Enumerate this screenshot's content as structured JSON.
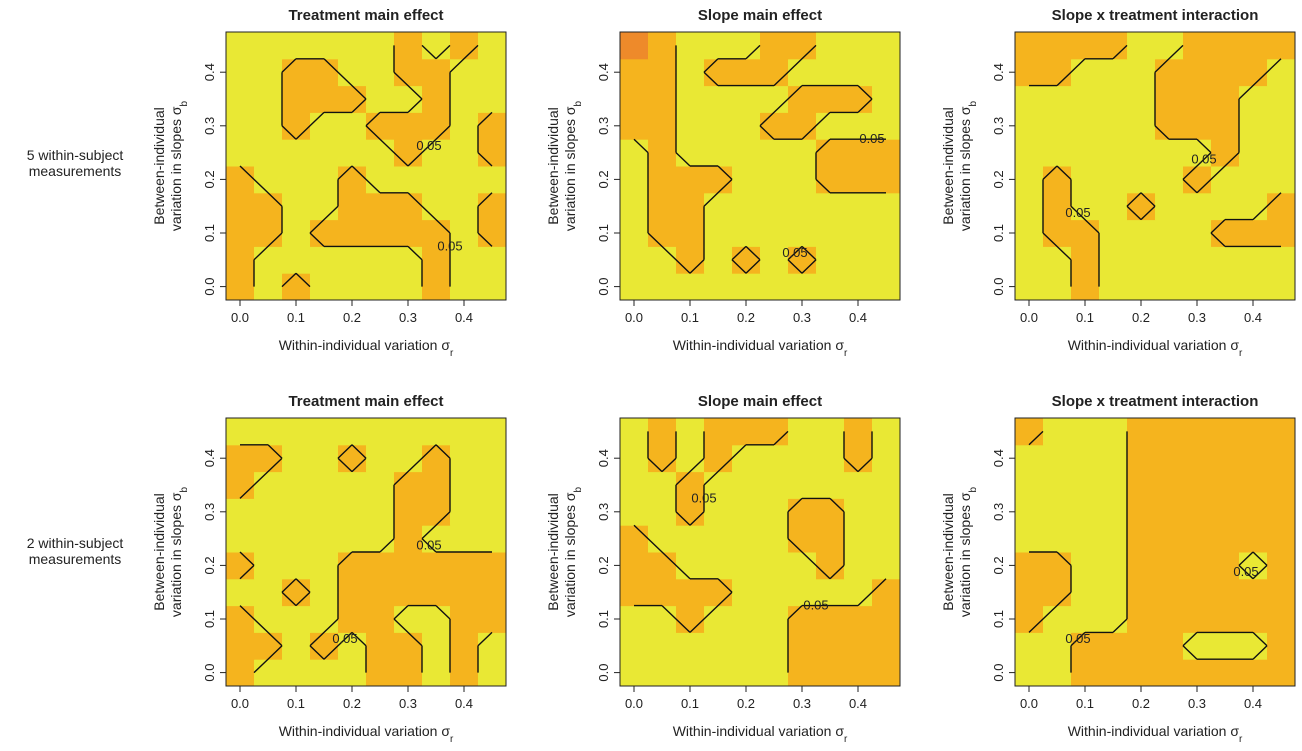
{
  "row_labels": [
    [
      "5 within-subject",
      "measurements"
    ],
    [
      "2 within-subject",
      "measurements"
    ]
  ],
  "chart_data": [
    {
      "type": "heatmap",
      "title": "Treatment main effect",
      "xlabel": "Within-individual variation σ",
      "xlabel_sub": "r",
      "ylabel": [
        "Between-individual",
        "variation in slopes σ"
      ],
      "ylabel_sub": "b",
      "x": [
        0,
        0.05,
        0.1,
        0.15,
        0.2,
        0.25,
        0.3,
        0.35,
        0.4,
        0.45
      ],
      "y": [
        0,
        0.05,
        0.1,
        0.15,
        0.2,
        0.25,
        0.3,
        0.35,
        0.4,
        0.45
      ],
      "xlim": [
        -0.025,
        0.475
      ],
      "ylim": [
        -0.025,
        0.475
      ],
      "xticks": [
        {
          "value": 0,
          "label": "0.0"
        },
        0.1,
        0.2,
        0.3,
        0.4
      ],
      "yticks": [
        {
          "value": 0,
          "label": "0.0"
        },
        0.1,
        0.2,
        0.3,
        0.4
      ],
      "colorscale": [
        [
          0.03,
          "#ee8a2a"
        ],
        [
          0.04,
          "#f5b41e"
        ],
        [
          0.06,
          "#e9e834"
        ]
      ],
      "contour_levels": [
        0.05
      ],
      "z": [
        [
          0.04,
          0.06,
          0.04,
          0.06,
          0.06,
          0.06,
          0.06,
          0.04,
          0.06,
          0.06
        ],
        [
          0.04,
          0.06,
          0.06,
          0.06,
          0.06,
          0.06,
          0.06,
          0.04,
          0.06,
          0.06
        ],
        [
          0.04,
          0.04,
          0.06,
          0.04,
          0.04,
          0.04,
          0.04,
          0.04,
          0.06,
          0.04
        ],
        [
          0.04,
          0.04,
          0.06,
          0.06,
          0.04,
          0.04,
          0.04,
          0.06,
          0.06,
          0.04
        ],
        [
          0.04,
          0.06,
          0.06,
          0.06,
          0.04,
          0.06,
          0.06,
          0.06,
          0.06,
          0.06
        ],
        [
          0.06,
          0.06,
          0.06,
          0.06,
          0.06,
          0.06,
          0.04,
          0.06,
          0.06,
          0.04
        ],
        [
          0.06,
          0.06,
          0.04,
          0.06,
          0.06,
          0.04,
          0.04,
          0.04,
          0.06,
          0.04
        ],
        [
          0.06,
          0.06,
          0.04,
          0.04,
          0.04,
          0.06,
          0.06,
          0.04,
          0.06,
          0.06
        ],
        [
          0.06,
          0.06,
          0.04,
          0.04,
          0.06,
          0.06,
          0.04,
          0.04,
          0.06,
          0.06
        ],
        [
          0.06,
          0.06,
          0.06,
          0.06,
          0.06,
          0.06,
          0.04,
          0.06,
          0.04,
          0.06
        ]
      ]
    },
    {
      "type": "heatmap",
      "title": "Slope main effect",
      "xlabel": "Within-individual variation σ",
      "xlabel_sub": "r",
      "ylabel": [
        "Between-individual",
        "variation in slopes σ"
      ],
      "ylabel_sub": "b",
      "x": [
        0,
        0.05,
        0.1,
        0.15,
        0.2,
        0.25,
        0.3,
        0.35,
        0.4,
        0.45
      ],
      "y": [
        0,
        0.05,
        0.1,
        0.15,
        0.2,
        0.25,
        0.3,
        0.35,
        0.4,
        0.45
      ],
      "xlim": [
        -0.025,
        0.475
      ],
      "ylim": [
        -0.025,
        0.475
      ],
      "xticks": [
        {
          "value": 0,
          "label": "0.0"
        },
        0.1,
        0.2,
        0.3,
        0.4
      ],
      "yticks": [
        {
          "value": 0,
          "label": "0.0"
        },
        0.1,
        0.2,
        0.3,
        0.4
      ],
      "colorscale": [
        [
          0.03,
          "#ee8a2a"
        ],
        [
          0.04,
          "#f5b41e"
        ],
        [
          0.06,
          "#e9e834"
        ]
      ],
      "contour_levels": [
        0.05
      ],
      "z": [
        [
          0.06,
          0.06,
          0.06,
          0.06,
          0.06,
          0.06,
          0.06,
          0.06,
          0.06,
          0.06
        ],
        [
          0.06,
          0.06,
          0.04,
          0.06,
          0.04,
          0.06,
          0.04,
          0.06,
          0.06,
          0.06
        ],
        [
          0.06,
          0.04,
          0.04,
          0.06,
          0.06,
          0.06,
          0.06,
          0.06,
          0.06,
          0.06
        ],
        [
          0.06,
          0.04,
          0.04,
          0.06,
          0.06,
          0.06,
          0.06,
          0.06,
          0.06,
          0.06
        ],
        [
          0.06,
          0.04,
          0.04,
          0.04,
          0.06,
          0.06,
          0.06,
          0.04,
          0.04,
          0.04
        ],
        [
          0.06,
          0.04,
          0.06,
          0.06,
          0.06,
          0.06,
          0.06,
          0.04,
          0.04,
          0.04
        ],
        [
          0.04,
          0.04,
          0.06,
          0.06,
          0.06,
          0.04,
          0.04,
          0.06,
          0.06,
          0.06
        ],
        [
          0.04,
          0.04,
          0.06,
          0.06,
          0.06,
          0.06,
          0.04,
          0.04,
          0.04,
          0.06
        ],
        [
          0.04,
          0.04,
          0.06,
          0.04,
          0.04,
          0.04,
          0.06,
          0.06,
          0.06,
          0.06
        ],
        [
          0.03,
          0.04,
          0.06,
          0.06,
          0.06,
          0.04,
          0.04,
          0.06,
          0.06,
          0.06
        ]
      ]
    },
    {
      "type": "heatmap",
      "title": "Slope x treatment interaction",
      "xlabel": "Within-individual variation σ",
      "xlabel_sub": "r",
      "ylabel": [
        "Between-individual",
        "variation in slopes σ"
      ],
      "ylabel_sub": "b",
      "x": [
        0,
        0.05,
        0.1,
        0.15,
        0.2,
        0.25,
        0.3,
        0.35,
        0.4,
        0.45
      ],
      "y": [
        0,
        0.05,
        0.1,
        0.15,
        0.2,
        0.25,
        0.3,
        0.35,
        0.4,
        0.45
      ],
      "xlim": [
        -0.025,
        0.475
      ],
      "ylim": [
        -0.025,
        0.475
      ],
      "xticks": [
        {
          "value": 0,
          "label": "0.0"
        },
        0.1,
        0.2,
        0.3,
        0.4
      ],
      "yticks": [
        {
          "value": 0,
          "label": "0.0"
        },
        0.1,
        0.2,
        0.3,
        0.4
      ],
      "colorscale": [
        [
          0.03,
          "#ee8a2a"
        ],
        [
          0.04,
          "#f5b41e"
        ],
        [
          0.06,
          "#e9e834"
        ]
      ],
      "contour_levels": [
        0.05
      ],
      "z": [
        [
          0.06,
          0.06,
          0.04,
          0.06,
          0.06,
          0.06,
          0.06,
          0.06,
          0.06,
          0.06
        ],
        [
          0.06,
          0.06,
          0.04,
          0.06,
          0.06,
          0.06,
          0.06,
          0.06,
          0.06,
          0.06
        ],
        [
          0.06,
          0.04,
          0.04,
          0.06,
          0.06,
          0.06,
          0.06,
          0.04,
          0.04,
          0.04
        ],
        [
          0.06,
          0.04,
          0.06,
          0.06,
          0.04,
          0.06,
          0.06,
          0.06,
          0.06,
          0.04
        ],
        [
          0.06,
          0.04,
          0.06,
          0.06,
          0.06,
          0.06,
          0.04,
          0.06,
          0.06,
          0.06
        ],
        [
          0.06,
          0.06,
          0.06,
          0.06,
          0.06,
          0.06,
          0.06,
          0.04,
          0.06,
          0.06
        ],
        [
          0.06,
          0.06,
          0.06,
          0.06,
          0.06,
          0.04,
          0.04,
          0.04,
          0.06,
          0.06
        ],
        [
          0.06,
          0.06,
          0.06,
          0.06,
          0.06,
          0.04,
          0.04,
          0.04,
          0.06,
          0.06
        ],
        [
          0.04,
          0.04,
          0.06,
          0.06,
          0.06,
          0.04,
          0.04,
          0.04,
          0.04,
          0.06
        ],
        [
          0.04,
          0.04,
          0.04,
          0.04,
          0.06,
          0.06,
          0.04,
          0.04,
          0.04,
          0.04
        ]
      ]
    },
    {
      "type": "heatmap",
      "title": "Treatment main effect",
      "xlabel": "Within-individual variation σ",
      "xlabel_sub": "r",
      "ylabel": [
        "Between-individual",
        "variation in slopes σ"
      ],
      "ylabel_sub": "b",
      "x": [
        0,
        0.05,
        0.1,
        0.15,
        0.2,
        0.25,
        0.3,
        0.35,
        0.4,
        0.45
      ],
      "y": [
        0,
        0.05,
        0.1,
        0.15,
        0.2,
        0.25,
        0.3,
        0.35,
        0.4,
        0.45
      ],
      "xlim": [
        -0.025,
        0.475
      ],
      "ylim": [
        -0.025,
        0.475
      ],
      "xticks": [
        {
          "value": 0,
          "label": "0.0"
        },
        0.1,
        0.2,
        0.3,
        0.4
      ],
      "yticks": [
        {
          "value": 0,
          "label": "0.0"
        },
        0.1,
        0.2,
        0.3,
        0.4
      ],
      "colorscale": [
        [
          0.03,
          "#ee8a2a"
        ],
        [
          0.04,
          "#f5b41e"
        ],
        [
          0.06,
          "#e9e834"
        ]
      ],
      "contour_levels": [
        0.05
      ],
      "z": [
        [
          0.04,
          0.06,
          0.06,
          0.06,
          0.06,
          0.04,
          0.04,
          0.06,
          0.04,
          0.06
        ],
        [
          0.04,
          0.04,
          0.06,
          0.04,
          0.06,
          0.04,
          0.04,
          0.06,
          0.04,
          0.06
        ],
        [
          0.04,
          0.06,
          0.06,
          0.06,
          0.04,
          0.04,
          0.06,
          0.06,
          0.04,
          0.04
        ],
        [
          0.06,
          0.06,
          0.04,
          0.06,
          0.04,
          0.04,
          0.04,
          0.04,
          0.04,
          0.04
        ],
        [
          0.04,
          0.06,
          0.06,
          0.06,
          0.04,
          0.04,
          0.04,
          0.04,
          0.04,
          0.04
        ],
        [
          0.06,
          0.06,
          0.06,
          0.06,
          0.06,
          0.06,
          0.04,
          0.06,
          0.06,
          0.06
        ],
        [
          0.06,
          0.06,
          0.06,
          0.06,
          0.06,
          0.06,
          0.04,
          0.04,
          0.06,
          0.06
        ],
        [
          0.04,
          0.06,
          0.06,
          0.06,
          0.06,
          0.06,
          0.04,
          0.04,
          0.06,
          0.06
        ],
        [
          0.04,
          0.04,
          0.06,
          0.06,
          0.04,
          0.06,
          0.06,
          0.04,
          0.06,
          0.06
        ],
        [
          0.06,
          0.06,
          0.06,
          0.06,
          0.06,
          0.06,
          0.06,
          0.06,
          0.06,
          0.06
        ]
      ]
    },
    {
      "type": "heatmap",
      "title": "Slope main effect",
      "xlabel": "Within-individual variation σ",
      "xlabel_sub": "r",
      "ylabel": [
        "Between-individual",
        "variation in slopes σ"
      ],
      "ylabel_sub": "b",
      "x": [
        0,
        0.05,
        0.1,
        0.15,
        0.2,
        0.25,
        0.3,
        0.35,
        0.4,
        0.45
      ],
      "y": [
        0,
        0.05,
        0.1,
        0.15,
        0.2,
        0.25,
        0.3,
        0.35,
        0.4,
        0.45
      ],
      "xlim": [
        -0.025,
        0.475
      ],
      "ylim": [
        -0.025,
        0.475
      ],
      "xticks": [
        {
          "value": 0,
          "label": "0.0"
        },
        0.1,
        0.2,
        0.3,
        0.4
      ],
      "yticks": [
        {
          "value": 0,
          "label": "0.0"
        },
        0.1,
        0.2,
        0.3,
        0.4
      ],
      "colorscale": [
        [
          0.03,
          "#ee8a2a"
        ],
        [
          0.04,
          "#f5b41e"
        ],
        [
          0.06,
          "#e9e834"
        ]
      ],
      "contour_levels": [
        0.05
      ],
      "z": [
        [
          0.06,
          0.06,
          0.06,
          0.06,
          0.06,
          0.06,
          0.04,
          0.04,
          0.04,
          0.04
        ],
        [
          0.06,
          0.06,
          0.06,
          0.06,
          0.06,
          0.06,
          0.04,
          0.04,
          0.04,
          0.04
        ],
        [
          0.06,
          0.06,
          0.04,
          0.06,
          0.06,
          0.06,
          0.04,
          0.04,
          0.04,
          0.04
        ],
        [
          0.04,
          0.04,
          0.04,
          0.04,
          0.06,
          0.06,
          0.06,
          0.06,
          0.06,
          0.04
        ],
        [
          0.04,
          0.04,
          0.06,
          0.06,
          0.06,
          0.06,
          0.06,
          0.04,
          0.06,
          0.06
        ],
        [
          0.04,
          0.06,
          0.06,
          0.06,
          0.06,
          0.06,
          0.04,
          0.04,
          0.06,
          0.06
        ],
        [
          0.06,
          0.06,
          0.04,
          0.06,
          0.06,
          0.06,
          0.04,
          0.04,
          0.06,
          0.06
        ],
        [
          0.06,
          0.06,
          0.04,
          0.06,
          0.06,
          0.06,
          0.06,
          0.06,
          0.06,
          0.06
        ],
        [
          0.06,
          0.04,
          0.06,
          0.04,
          0.06,
          0.06,
          0.06,
          0.06,
          0.04,
          0.06
        ],
        [
          0.06,
          0.04,
          0.06,
          0.04,
          0.04,
          0.04,
          0.06,
          0.06,
          0.04,
          0.06
        ]
      ]
    },
    {
      "type": "heatmap",
      "title": "Slope x treatment interaction",
      "xlabel": "Within-individual variation σ",
      "xlabel_sub": "r",
      "ylabel": [
        "Between-individual",
        "variation in slopes σ"
      ],
      "ylabel_sub": "b",
      "x": [
        0,
        0.05,
        0.1,
        0.15,
        0.2,
        0.25,
        0.3,
        0.35,
        0.4,
        0.45
      ],
      "y": [
        0,
        0.05,
        0.1,
        0.15,
        0.2,
        0.25,
        0.3,
        0.35,
        0.4,
        0.45
      ],
      "xlim": [
        -0.025,
        0.475
      ],
      "ylim": [
        -0.025,
        0.475
      ],
      "xticks": [
        {
          "value": 0,
          "label": "0.0"
        },
        0.1,
        0.2,
        0.3,
        0.4
      ],
      "yticks": [
        {
          "value": 0,
          "label": "0.0"
        },
        0.1,
        0.2,
        0.3,
        0.4
      ],
      "colorscale": [
        [
          0.03,
          "#ee8a2a"
        ],
        [
          0.04,
          "#f5b41e"
        ],
        [
          0.06,
          "#e9e834"
        ]
      ],
      "contour_levels": [
        0.05
      ],
      "z": [
        [
          0.06,
          0.06,
          0.04,
          0.04,
          0.04,
          0.04,
          0.04,
          0.04,
          0.04,
          0.04
        ],
        [
          0.06,
          0.06,
          0.04,
          0.04,
          0.04,
          0.04,
          0.06,
          0.06,
          0.06,
          0.04
        ],
        [
          0.04,
          0.06,
          0.06,
          0.06,
          0.04,
          0.04,
          0.04,
          0.04,
          0.04,
          0.04
        ],
        [
          0.04,
          0.04,
          0.06,
          0.06,
          0.04,
          0.04,
          0.04,
          0.04,
          0.04,
          0.04
        ],
        [
          0.04,
          0.04,
          0.06,
          0.06,
          0.04,
          0.04,
          0.04,
          0.04,
          0.06,
          0.04
        ],
        [
          0.06,
          0.06,
          0.06,
          0.06,
          0.04,
          0.04,
          0.04,
          0.04,
          0.04,
          0.04
        ],
        [
          0.06,
          0.06,
          0.06,
          0.06,
          0.04,
          0.04,
          0.04,
          0.04,
          0.04,
          0.04
        ],
        [
          0.06,
          0.06,
          0.06,
          0.06,
          0.04,
          0.04,
          0.04,
          0.04,
          0.04,
          0.04
        ],
        [
          0.06,
          0.06,
          0.06,
          0.06,
          0.04,
          0.04,
          0.04,
          0.04,
          0.04,
          0.04
        ],
        [
          0.04,
          0.06,
          0.06,
          0.06,
          0.04,
          0.04,
          0.04,
          0.04,
          0.04,
          0.04
        ]
      ]
    }
  ]
}
